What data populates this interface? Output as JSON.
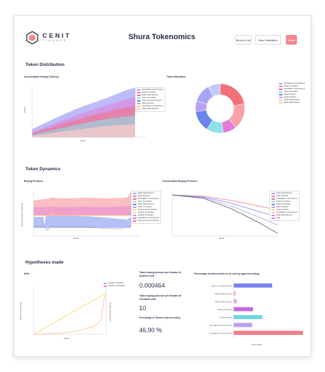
{
  "header": {
    "logo_main": "CENIT",
    "logo_sub": "FINANCE",
    "title": "Shura Tokenomics",
    "buttons": {
      "call": "Book a Call",
      "simulation": "New Simulation",
      "share": "Share"
    }
  },
  "sections": {
    "distribution": "Token Distribution",
    "dynamics": "Token Dynamics",
    "hypotheses": "Hypotheses made"
  },
  "colors": {
    "accent": "#f4878c",
    "series": [
      "#a5a6f6",
      "#e27bd8",
      "#f2707a",
      "#8ee1e6",
      "#6c84ee",
      "#b9a0f0",
      "#ffd27a",
      "#f7c9c9"
    ]
  },
  "charts": {
    "vesting": {
      "title": "Accumulated Vesting (Tokens)",
      "ylabel": "Tokens",
      "xlabel": "Month",
      "legend": [
        "Foundation & community A",
        "Series A Investors",
        "Public Sale Round 1",
        "Team & Founders",
        "Team & Launch Partners",
        "Seed Investors",
        "Foundation & community II",
        "Public Sale Round II"
      ]
    },
    "allocation": {
      "title": "Token Allocation",
      "legend": [
        "Foundation & community A",
        "Series A Investors",
        "Foundation & community II",
        "Team & Founders",
        "Seed Investors",
        "Angel Investors",
        "Public Sale Round 2",
        "Public Sale Round 1"
      ]
    },
    "buying": {
      "title": "Buying Pressure",
      "ylabel": "Buying pressure (Tokens)",
      "xlabel": "Month",
      "legend": [
        "Public Sale Round 1",
        "Seed Investors",
        "Foundation & community A",
        "Team & Founders",
        "Public Sale Round 2",
        "Series A Investors",
        "Team & Launch Partners",
        "Number of Contracts",
        "Number of Quarries",
        "Foundation & community II",
        "Team & Launch & Partners"
      ]
    },
    "accumulated_buying": {
      "title": "Accumulated Buying Pressure",
      "xlabel": "Month",
      "legend": [
        "Public Sale Round 1",
        "Seed Investors",
        "Foundation & community A",
        "Series A Investors",
        "Team & Founders",
        "Seed Investors",
        "Angel Investors",
        "Foundation & community II",
        "Public Sale Round 2",
        "Total"
      ]
    },
    "kpis": {
      "title": "KPIs",
      "xlabel": "Month",
      "ylabel_left": "Number of Quarries",
      "ylabel_right": "Number of Contracts",
      "legend": [
        "Number of Quarries",
        "Number of Contracts"
      ]
    },
    "percentage": {
      "title": "Percentage of tokens likely to be sold by agent at vesting",
      "xlabel": "Percentage"
    }
  },
  "metrics": [
    {
      "label": "Token buying pressure per Number of Quarries sold",
      "value": "0.000464"
    },
    {
      "label": "Token buying pressure per Number of Contracts sold",
      "value": "10"
    },
    {
      "label": "Percentage of Tokens sold at vesting",
      "value": "46,90 %"
    }
  ],
  "chart_data": [
    {
      "type": "area",
      "title": "Accumulated Vesting (Tokens)",
      "xlabel": "Month",
      "ylabel": "Tokens",
      "x": [
        0,
        6,
        12,
        18,
        24,
        30,
        36,
        42,
        48
      ],
      "series": [
        {
          "name": "Foundation & community A",
          "values": [
            12,
            22,
            36,
            48,
            58,
            66,
            72,
            76,
            78
          ]
        },
        {
          "name": "Series A Investors",
          "values": [
            8,
            16,
            28,
            38,
            47,
            55,
            61,
            65,
            67
          ]
        },
        {
          "name": "Public Sale Round 1",
          "values": [
            6,
            12,
            22,
            31,
            40,
            47,
            53,
            57,
            58
          ]
        },
        {
          "name": "Team & Founders",
          "values": [
            5,
            10,
            18,
            26,
            33,
            39,
            44,
            48,
            49
          ]
        },
        {
          "name": "Team & Launch Partners",
          "values": [
            4,
            8,
            14,
            20,
            26,
            31,
            35,
            38,
            39
          ]
        },
        {
          "name": "Seed Investors",
          "values": [
            3,
            6,
            10,
            15,
            19,
            23,
            26,
            28,
            29
          ]
        },
        {
          "name": "Foundation & community II",
          "values": [
            2,
            4,
            7,
            10,
            13,
            16,
            18,
            19,
            20
          ]
        },
        {
          "name": "Public Sale Round II",
          "values": [
            1,
            2,
            4,
            6,
            8,
            9,
            10,
            11,
            11
          ]
        }
      ]
    },
    {
      "type": "pie",
      "title": "Token Allocation",
      "categories": [
        "Foundation & community A",
        "Series A Investors",
        "Foundation & community II",
        "Team & Founders",
        "Seed Investors",
        "Angel Investors",
        "Public Sale Round 2",
        "Public Sale Round 1"
      ],
      "values": [
        22,
        17,
        9,
        11,
        14,
        7,
        12,
        8
      ]
    },
    {
      "type": "area",
      "title": "Buying Pressure",
      "xlabel": "Month",
      "ylabel": "Buying pressure (Tokens)",
      "x": [
        0,
        6,
        12,
        18,
        24,
        30,
        36,
        42,
        48
      ],
      "series": [
        {
          "name": "Public Sale Round 1",
          "values": [
            60,
            58,
            62,
            60,
            58,
            57,
            56,
            55,
            70
          ]
        },
        {
          "name": "Seed Investors",
          "values": [
            52,
            50,
            53,
            51,
            50,
            49,
            48,
            47,
            60
          ]
        },
        {
          "name": "Foundation & community A",
          "values": [
            44,
            42,
            45,
            43,
            42,
            41,
            40,
            39,
            50
          ]
        },
        {
          "name": "Team & Founders",
          "values": [
            36,
            34,
            37,
            35,
            34,
            33,
            32,
            31,
            40
          ]
        }
      ]
    },
    {
      "type": "line",
      "title": "Accumulated Buying Pressure",
      "xlabel": "Month",
      "x": [
        0,
        6,
        12,
        18,
        24,
        30,
        36,
        42,
        48
      ],
      "series": [
        {
          "name": "Public Sale Round 1",
          "values": [
            0,
            -2,
            -4,
            -6,
            -8,
            -10,
            -12,
            -14,
            -16
          ]
        },
        {
          "name": "Seed Investors",
          "values": [
            0,
            -3,
            -6,
            -9,
            -13,
            -17,
            -21,
            -25,
            -29
          ]
        },
        {
          "name": "Foundation & community A",
          "values": [
            0,
            -3,
            -7,
            -12,
            -17,
            -23,
            -29,
            -35,
            -41
          ]
        },
        {
          "name": "Total",
          "values": [
            0,
            -4,
            -9,
            -16,
            -24,
            -33,
            -43,
            -54,
            -66
          ]
        }
      ]
    },
    {
      "type": "line",
      "title": "KPIs",
      "xlabel": "Month",
      "x": [
        0,
        6,
        12,
        18,
        24,
        30,
        36,
        42,
        48
      ],
      "series": [
        {
          "name": "Number of Quarries",
          "values": [
            0,
            12,
            25,
            38,
            50,
            62,
            74,
            86,
            98
          ]
        },
        {
          "name": "Number of Contracts",
          "values": [
            0,
            1,
            2,
            4,
            7,
            12,
            20,
            35,
            90
          ]
        }
      ]
    },
    {
      "type": "bar",
      "title": "Percentage of tokens likely to be sold by agent at vesting",
      "xlabel": "Percentage",
      "categories": [
        "Team & Launch Partners",
        "Public Sale Round 2",
        "Public Sale Round 1",
        "Series A Investors",
        "Seed Investors",
        "Foundation & community II",
        "Foundation & community A"
      ],
      "values": [
        50,
        2,
        4,
        25,
        37,
        24,
        90
      ]
    }
  ]
}
